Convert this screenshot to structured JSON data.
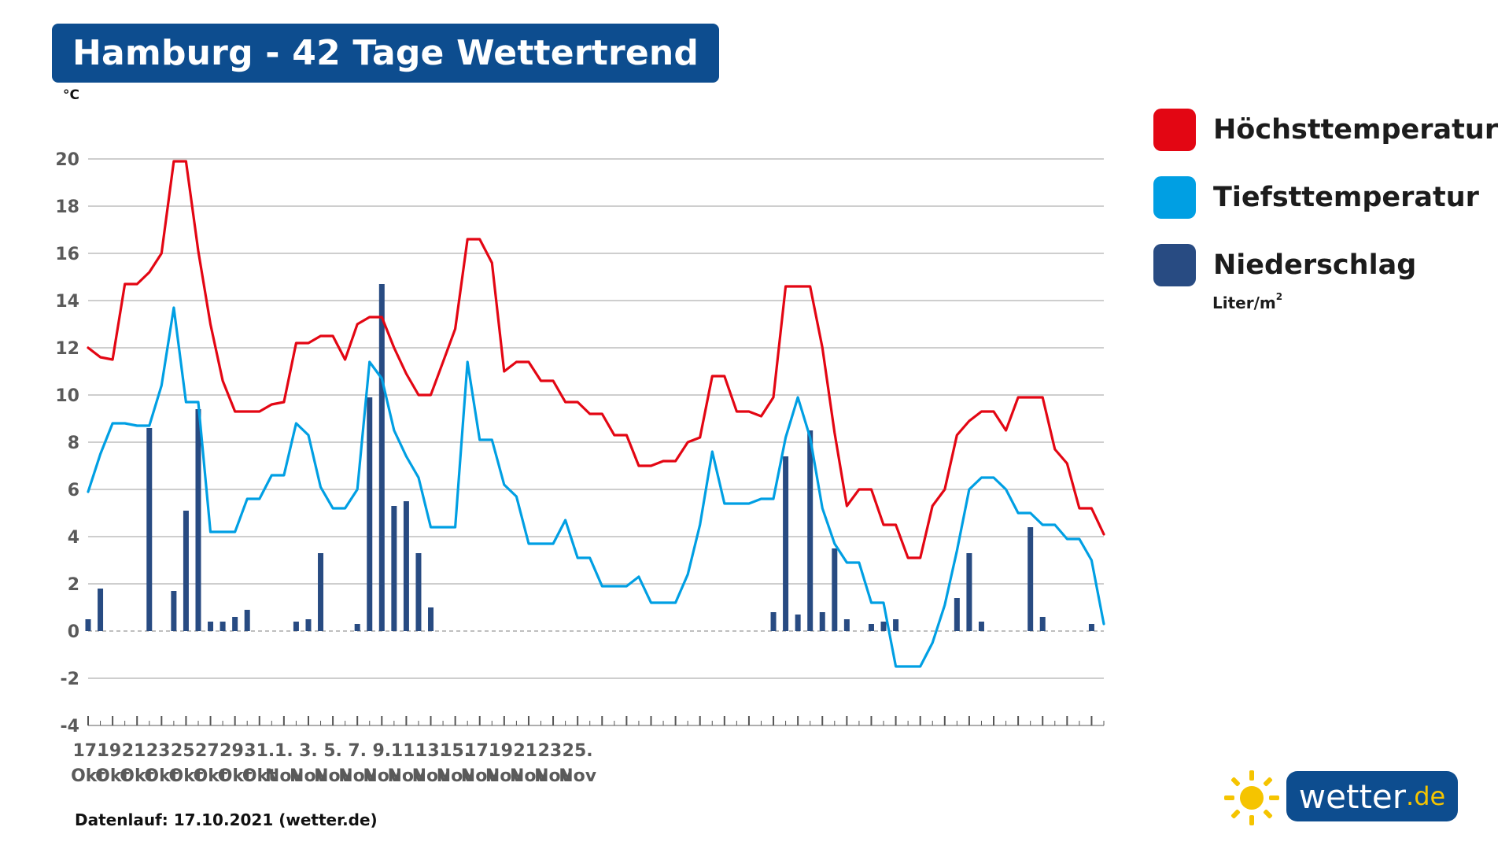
{
  "header": {
    "title": "Hamburg - 42 Tage Wettertrend"
  },
  "footer": {
    "text": "Datenlauf: 17.10.2021 (wetter.de)"
  },
  "logo": {
    "name": "wetter",
    "tld": ".de",
    "icon": "sun-icon"
  },
  "legend": {
    "items": [
      {
        "label": "Höchsttemperatur",
        "color": "#e30613"
      },
      {
        "label": "Tiefsttemperatur",
        "color": "#009fe3"
      },
      {
        "label": "Niederschlag",
        "color": "#284b82"
      }
    ],
    "precip_unit": "Liter/m",
    "precip_unit_sup": "2"
  },
  "chart_data": {
    "type": "line",
    "ylabel": "°C",
    "ylim": [
      -4,
      20
    ],
    "yticks": [
      20,
      18,
      16,
      14,
      12,
      10,
      8,
      6,
      4,
      2,
      0,
      -2,
      -4
    ],
    "grid": true,
    "legend_position": "right",
    "x_tick_labels": [
      [
        "17.",
        "Okt"
      ],
      [
        "19.",
        "Okt"
      ],
      [
        "21.",
        "Okt"
      ],
      [
        "23.",
        "Okt"
      ],
      [
        "25.",
        "Okt"
      ],
      [
        "27.",
        "Okt"
      ],
      [
        "29.",
        "Okt"
      ],
      [
        "31.",
        "Okt"
      ],
      [
        "1.",
        "Nov"
      ],
      [
        "3.",
        "Nov"
      ],
      [
        "5.",
        "Nov"
      ],
      [
        "7.",
        "Nov"
      ],
      [
        "9.",
        "Nov"
      ],
      [
        "11.",
        "Nov"
      ],
      [
        "13.",
        "Nov"
      ],
      [
        "15.",
        "Nov"
      ],
      [
        "17.",
        "Nov"
      ],
      [
        "19.",
        "Nov"
      ],
      [
        "21.",
        "Nov"
      ],
      [
        "23.",
        "Nov"
      ],
      [
        "25.",
        "Nov"
      ]
    ],
    "series": [
      {
        "name": "Höchsttemperatur",
        "color": "#e30613",
        "values": [
          12.0,
          11.6,
          11.5,
          14.7,
          14.7,
          15.2,
          16.0,
          19.9,
          19.9,
          16.1,
          13.0,
          10.6,
          9.3,
          9.3,
          9.3,
          9.6,
          9.7,
          12.2,
          12.2,
          12.5,
          12.5,
          11.5,
          13.0,
          13.3,
          13.3,
          12.0,
          10.9,
          10.0,
          10.0,
          11.4,
          12.8,
          16.6,
          16.6,
          15.6,
          11.0,
          11.4,
          11.4,
          10.6,
          10.6,
          9.7,
          9.7,
          9.2,
          9.2,
          8.3,
          8.3,
          7.0,
          7.0,
          7.2,
          7.2,
          8.0,
          8.2,
          10.8,
          10.8,
          9.3,
          9.3,
          9.1,
          9.9,
          14.6,
          14.6,
          14.6,
          12.0,
          8.4,
          5.3,
          6.0,
          6.0,
          4.5,
          4.5,
          3.1,
          3.1,
          5.3,
          6.0,
          8.3,
          8.9,
          9.3,
          9.3,
          8.5,
          9.9,
          9.9,
          9.9,
          7.7,
          7.1,
          5.2,
          5.2,
          4.1
        ]
      },
      {
        "name": "Tiefsttemperatur",
        "color": "#009fe3",
        "values": [
          5.9,
          7.5,
          8.8,
          8.8,
          8.7,
          8.7,
          10.4,
          13.7,
          9.7,
          9.7,
          4.2,
          4.2,
          4.2,
          5.6,
          5.6,
          6.6,
          6.6,
          8.8,
          8.3,
          6.1,
          5.2,
          5.2,
          6.0,
          11.4,
          10.7,
          8.5,
          7.4,
          6.5,
          4.4,
          4.4,
          4.4,
          11.4,
          8.1,
          8.1,
          6.2,
          5.7,
          3.7,
          3.7,
          3.7,
          4.7,
          3.1,
          3.1,
          1.9,
          1.9,
          1.9,
          2.3,
          1.2,
          1.2,
          1.2,
          2.4,
          4.5,
          7.6,
          5.4,
          5.4,
          5.4,
          5.6,
          5.6,
          8.2,
          9.9,
          8.2,
          5.2,
          3.7,
          2.9,
          2.9,
          1.2,
          1.2,
          -1.5,
          -1.5,
          -1.5,
          -0.5,
          1.1,
          3.4,
          6.0,
          6.5,
          6.5,
          6.0,
          5.0,
          5.0,
          4.5,
          4.5,
          3.9,
          3.9,
          3.0,
          0.3
        ]
      },
      {
        "name": "Niederschlag",
        "color": "#284b82",
        "type": "bar",
        "values": [
          0.5,
          1.8,
          0,
          0,
          0,
          8.6,
          0,
          1.7,
          5.1,
          9.4,
          0.4,
          0.4,
          0.6,
          0.9,
          0,
          0,
          0,
          0.4,
          0.5,
          3.3,
          0,
          0,
          0.3,
          9.9,
          14.7,
          5.3,
          5.5,
          3.3,
          1.0,
          0,
          0,
          0,
          0,
          0,
          0,
          0,
          0,
          0,
          0,
          0,
          0,
          0,
          0,
          0,
          0,
          0,
          0,
          0,
          0,
          0,
          0,
          0,
          0,
          0,
          0,
          0,
          0.8,
          7.4,
          0.7,
          8.5,
          0.8,
          3.5,
          0.5,
          0,
          0.3,
          0.4,
          0.5,
          0,
          0,
          0,
          0,
          1.4,
          3.3,
          0.4,
          0,
          0,
          0,
          4.4,
          0.6,
          0,
          0,
          0,
          0.3,
          0
        ]
      }
    ]
  }
}
